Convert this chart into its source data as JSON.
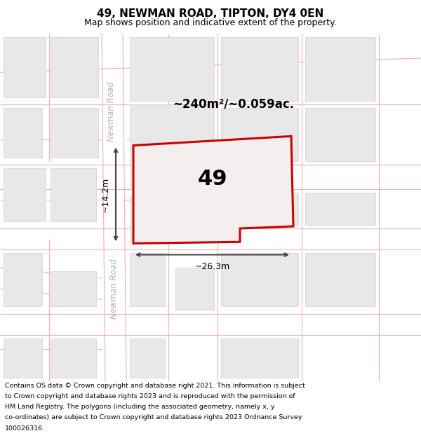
{
  "title": "49, NEWMAN ROAD, TIPTON, DY4 0EN",
  "subtitle": "Map shows position and indicative extent of the property.",
  "footer_lines": [
    "Contains OS data © Crown copyright and database right 2021. This information is subject",
    "to Crown copyright and database rights 2023 and is reproduced with the permission of",
    "HM Land Registry. The polygons (including the associated geometry, namely x, y",
    "co-ordinates) are subject to Crown copyright and database rights 2023 Ordnance Survey",
    "100026316."
  ],
  "map_bg": "#f8f5f5",
  "road_line_color": "#f0b0b0",
  "road_line_lw": 0.8,
  "building_fill": "#e8e8e8",
  "building_edge": "#d0d0d0",
  "building_lw": 0.5,
  "highlight_fill": "#f5eeee",
  "highlight_edge": "#cc0000",
  "highlight_lw": 2.2,
  "property_label": "49",
  "area_label": "~240m²/~0.059ac.",
  "width_label": "~26.3m",
  "height_label": "~14.2m",
  "road_label": "Newman Road",
  "dim_color": "#444444",
  "road_text_color": "#b8b0b0",
  "title_fontsize": 11,
  "subtitle_fontsize": 9,
  "footer_fontsize": 6.8,
  "label_fontsize": 9,
  "area_fontsize": 12,
  "num_fontsize": 22
}
